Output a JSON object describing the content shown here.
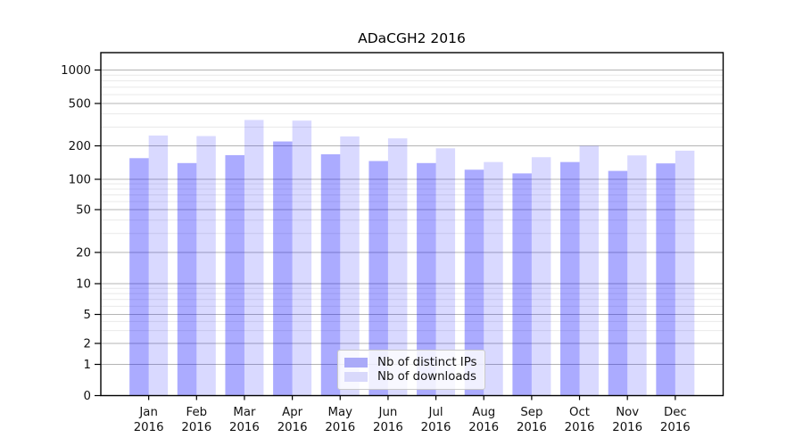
{
  "chart": {
    "title": "ADaCGH2 2016"
  },
  "chart_data": {
    "type": "bar",
    "title": "ADaCGH2 2016",
    "categories": [
      "Jan",
      "Feb",
      "Mar",
      "Apr",
      "May",
      "Jun",
      "Jul",
      "Aug",
      "Sep",
      "Oct",
      "Nov",
      "Dec"
    ],
    "x_tick_second_line": "2016",
    "series": [
      {
        "name": "Nb of distinct IPs",
        "color": "rgba(0,0,255,0.33)",
        "color_hex": "#aaaaf8",
        "values": [
          155,
          140,
          165,
          220,
          168,
          146,
          140,
          122,
          113,
          143,
          119,
          139
        ]
      },
      {
        "name": "Nb of downloads",
        "color": "rgba(0,0,255,0.15)",
        "color_hex": "#d9d9fb",
        "values": [
          250,
          247,
          350,
          345,
          245,
          235,
          190,
          143,
          158,
          200,
          164,
          181
        ]
      }
    ],
    "y_axis": {
      "major_ticks": [
        0,
        1,
        2,
        5,
        10,
        20,
        50,
        100,
        200,
        500,
        1000
      ],
      "minor_ticks": [
        3,
        4,
        6,
        7,
        8,
        9,
        30,
        40,
        60,
        70,
        80,
        90,
        300,
        400,
        600,
        700,
        800,
        900
      ],
      "scale": "log-like, 0 shown below 1",
      "range_top": 1000
    },
    "grid": "horizontal major + minor gridlines",
    "legend_position": "inside bottom center"
  },
  "legend": {
    "items": [
      {
        "label": "Nb of distinct IPs"
      },
      {
        "label": "Nb of downloads"
      }
    ]
  },
  "colors": {
    "bar_distinct_ips": "#aaaaf8",
    "bar_downloads": "#d9d9fb",
    "grid_major": "#b4b4b4",
    "grid_minor": "#e9e9e9",
    "axis": "#000000",
    "background": "#ffffff",
    "legend_border": "#c9c9c9"
  }
}
